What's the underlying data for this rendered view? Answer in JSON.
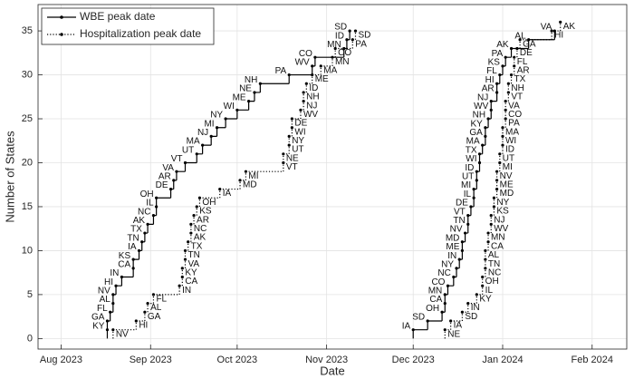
{
  "chart_data": {
    "type": "step",
    "x_label": "Date",
    "y_label": "Number of States",
    "xlim": [
      "2023-07-24",
      "2024-02-13"
    ],
    "ylim": [
      -1.2,
      38
    ],
    "xticks": [
      {
        "value": "2023-08-01",
        "label": "Aug 2023"
      },
      {
        "value": "2023-09-01",
        "label": "Sep 2023"
      },
      {
        "value": "2023-10-01",
        "label": "Oct 2023"
      },
      {
        "value": "2023-11-01",
        "label": "Nov 2023"
      },
      {
        "value": "2023-12-01",
        "label": "Dec 2023"
      },
      {
        "value": "2024-01-01",
        "label": "Jan 2024"
      },
      {
        "value": "2024-02-01",
        "label": "Feb 2024"
      }
    ],
    "yticks": [
      0,
      5,
      10,
      15,
      20,
      25,
      30,
      35
    ],
    "grid": true,
    "legend": "upper left",
    "series": [
      {
        "name": "WBE peak date",
        "color": "#000000",
        "line_style": "solid",
        "label_side": "left",
        "waves": [
          {
            "x": [
              "2023-08-17",
              "2023-08-17",
              "2023-08-18",
              "2023-08-19",
              "2023-08-19",
              "2023-08-20",
              "2023-08-22",
              "2023-08-26",
              "2023-08-26",
              "2023-08-28",
              "2023-08-29",
              "2023-08-30",
              "2023-08-31",
              "2023-09-02",
              "2023-09-03",
              "2023-09-03",
              "2023-09-08",
              "2023-09-09",
              "2023-09-10",
              "2023-09-13",
              "2023-09-17",
              "2023-09-19",
              "2023-09-22",
              "2023-09-24",
              "2023-09-27",
              "2023-10-01",
              "2023-10-05",
              "2023-10-07",
              "2023-10-09",
              "2023-10-19",
              "2023-10-27",
              "2023-10-28",
              "2023-11-07",
              "2023-11-08",
              "2023-11-09"
            ],
            "values": [
              1,
              2,
              3,
              4,
              5,
              6,
              7,
              8,
              9,
              10,
              11,
              12,
              13,
              14,
              15,
              16,
              17,
              18,
              19,
              20,
              21,
              22,
              23,
              24,
              25,
              26,
              27,
              28,
              29,
              30,
              31,
              32,
              33,
              34,
              35
            ],
            "labels": [
              "KY",
              "GA",
              "FL",
              "AL",
              "NV",
              "HI",
              "IN",
              "CA",
              "KS",
              "IA",
              "TN",
              "TX",
              "AK",
              "NC",
              "IL",
              "OH",
              "DE",
              "AR",
              "VA",
              "VT",
              "UT",
              "MA",
              "NJ",
              "MI",
              "NY",
              "WI",
              "ME",
              "NE",
              "NH",
              "PA",
              "WV",
              "CO",
              "MN",
              "ID",
              "SD"
            ]
          },
          {
            "x": [
              "2023-12-01",
              "2023-12-06",
              "2023-12-11",
              "2023-12-12",
              "2023-12-12",
              "2023-12-13",
              "2023-12-15",
              "2023-12-16",
              "2023-12-17",
              "2023-12-18",
              "2023-12-18",
              "2023-12-19",
              "2023-12-20",
              "2023-12-20",
              "2023-12-21",
              "2023-12-22",
              "2023-12-22",
              "2023-12-23",
              "2023-12-23",
              "2023-12-24",
              "2023-12-24",
              "2023-12-25",
              "2023-12-26",
              "2023-12-26",
              "2023-12-27",
              "2023-12-28",
              "2023-12-28",
              "2023-12-30",
              "2023-12-30",
              "2023-12-31",
              "2024-01-01",
              "2024-01-02",
              "2024-01-04",
              "2024-01-10",
              "2024-01-19"
            ],
            "values": [
              1,
              2,
              3,
              4,
              5,
              6,
              7,
              8,
              9,
              10,
              11,
              12,
              13,
              14,
              15,
              16,
              17,
              18,
              19,
              20,
              21,
              22,
              23,
              24,
              25,
              26,
              27,
              28,
              29,
              30,
              31,
              32,
              33,
              34,
              35
            ],
            "labels": [
              "IA",
              "SD",
              "OH",
              "CA",
              "MN",
              "CO",
              "NC",
              "NY",
              "IN",
              "ME",
              "MD",
              "NV",
              "TN",
              "VT",
              "DE",
              "IL",
              "MI",
              "UT",
              "ID",
              "WI",
              "TX",
              "MA",
              "GA",
              "KY",
              "NH",
              "WV",
              "NJ",
              "AR",
              "HI",
              "FL",
              "KS",
              "PA",
              "AK",
              "AL",
              "VA"
            ]
          }
        ]
      },
      {
        "name": "Hospitalization peak date",
        "color": "#000000",
        "line_style": "dotted",
        "label_side": "right",
        "waves": [
          {
            "x": [
              "2023-08-19",
              "2023-08-27",
              "2023-08-30",
              "2023-08-31",
              "2023-09-02",
              "2023-09-11",
              "2023-09-12",
              "2023-09-12",
              "2023-09-13",
              "2023-09-13",
              "2023-09-14",
              "2023-09-15",
              "2023-09-15",
              "2023-09-16",
              "2023-09-17",
              "2023-09-18",
              "2023-09-25",
              "2023-10-02",
              "2023-10-04",
              "2023-10-17",
              "2023-10-17",
              "2023-10-19",
              "2023-10-19",
              "2023-10-20",
              "2023-10-20",
              "2023-10-23",
              "2023-10-24",
              "2023-10-24",
              "2023-10-25",
              "2023-10-27",
              "2023-10-30",
              "2023-11-03",
              "2023-11-04",
              "2023-11-10",
              "2023-11-11"
            ],
            "values": [
              1,
              2,
              3,
              4,
              5,
              6,
              7,
              8,
              9,
              10,
              11,
              12,
              13,
              14,
              15,
              16,
              17,
              18,
              19,
              20,
              21,
              22,
              23,
              24,
              25,
              26,
              27,
              28,
              29,
              30,
              31,
              32,
              33,
              34,
              35
            ],
            "labels": [
              "NV",
              "HI",
              "GA",
              "AL",
              "FL",
              "IN",
              "CA",
              "KY",
              "VA",
              "TN",
              "TX",
              "AK",
              "NC",
              "AR",
              "KS",
              "OH",
              "IA",
              "MD",
              "MI",
              "VT",
              "NE",
              "UT",
              "NY",
              "WI",
              "DE",
              "WV",
              "NJ",
              "NH",
              "ID",
              "ME",
              "MA",
              "MN",
              "CO",
              "PA",
              "SD"
            ]
          },
          {
            "x": [
              "2023-12-12",
              "2023-12-14",
              "2023-12-18",
              "2023-12-20",
              "2023-12-23",
              "2023-12-25",
              "2023-12-25",
              "2023-12-26",
              "2023-12-26",
              "2023-12-26",
              "2023-12-27",
              "2023-12-27",
              "2023-12-28",
              "2023-12-28",
              "2023-12-29",
              "2023-12-29",
              "2023-12-30",
              "2023-12-30",
              "2023-12-30",
              "2023-12-31",
              "2023-12-31",
              "2024-01-01",
              "2024-01-01",
              "2024-01-01",
              "2024-01-02",
              "2024-01-02",
              "2024-01-02",
              "2024-01-03",
              "2024-01-03",
              "2024-01-04",
              "2024-01-05",
              "2024-01-05",
              "2024-01-06",
              "2024-01-07",
              "2024-01-18",
              "2024-01-21"
            ],
            "values": [
              1,
              2,
              3,
              4,
              5,
              6,
              7,
              8,
              9,
              10,
              11,
              12,
              13,
              14,
              15,
              16,
              17,
              18,
              19,
              20,
              21,
              22,
              23,
              24,
              25,
              26,
              27,
              28,
              29,
              30,
              31,
              32,
              33,
              34,
              35,
              36
            ],
            "labels": [
              "NE",
              "IA",
              "SD",
              "IN",
              "KY",
              "IL",
              "OH",
              "NC",
              "TN",
              "AL",
              "CA",
              "MN",
              "WV",
              "NJ",
              "KS",
              "NY",
              "MD",
              "ME",
              "NV",
              "MI",
              "UT",
              "ID",
              "WI",
              "MA",
              "PA",
              "CO",
              "VA",
              "VT",
              "NH",
              "TX",
              "AR",
              "FL",
              "DE",
              "GA",
              "HI",
              "AK"
            ]
          }
        ]
      }
    ]
  }
}
